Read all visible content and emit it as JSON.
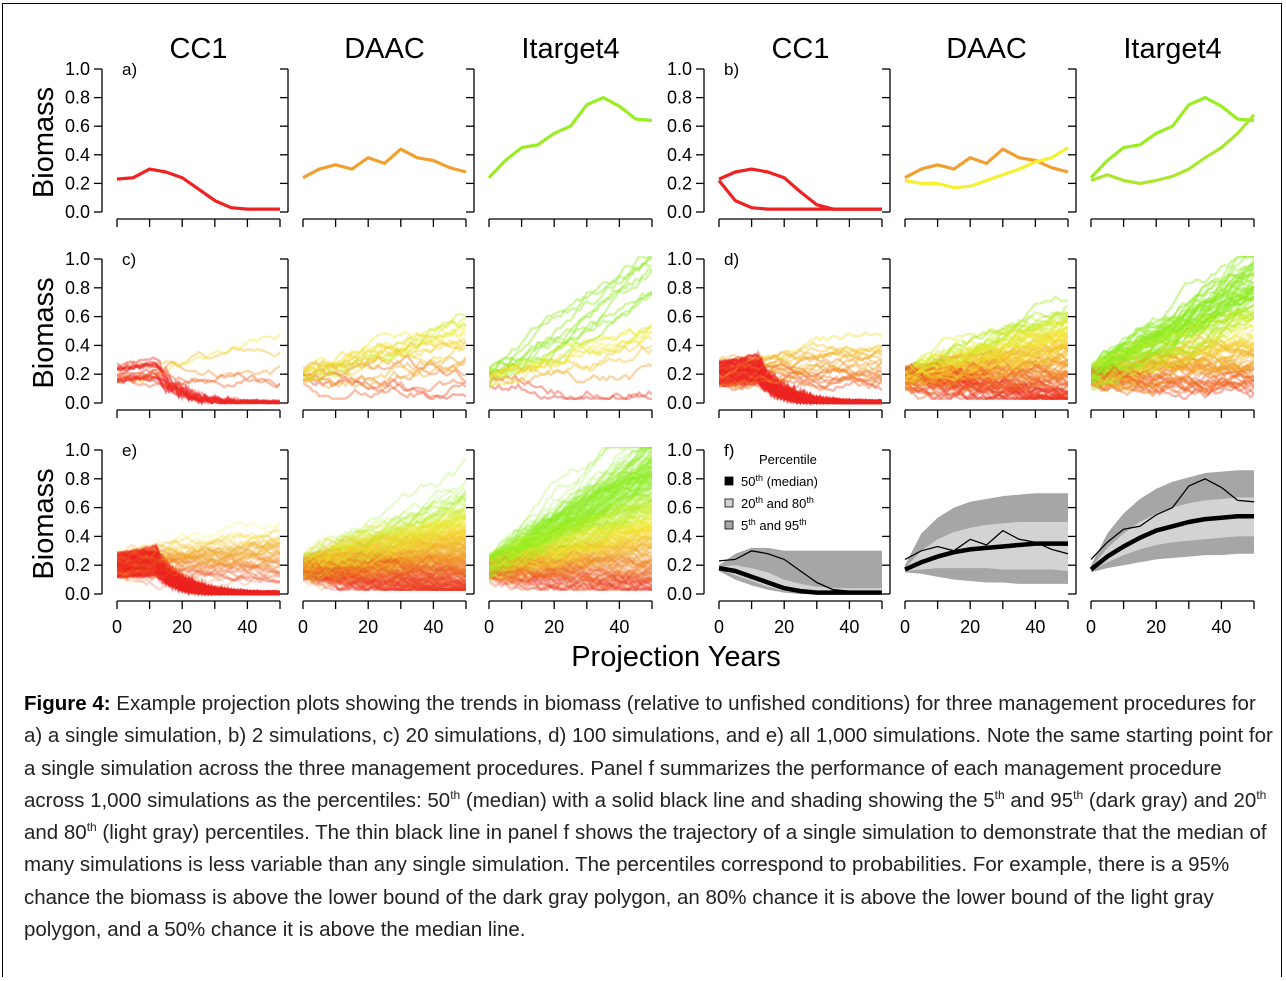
{
  "figure": {
    "column_titles": [
      "CC1",
      "DAAC",
      "Itarget4",
      "CC1",
      "DAAC",
      "Itarget4"
    ],
    "y_label": "Biomass",
    "x_label": "Projection Years",
    "y_ticks": [
      "0.0",
      "0.2",
      "0.4",
      "0.6",
      "0.8",
      "1.0"
    ],
    "x_ticks": [
      "0",
      "20",
      "40"
    ],
    "panel_letters": [
      "a)",
      "b)",
      "c)",
      "d)",
      "e)",
      "f)"
    ],
    "legend": {
      "title": "Percentile",
      "items": [
        {
          "pre": "50",
          "sup": "th",
          "post": " (median)",
          "color": "#000000"
        },
        {
          "pre": "20",
          "sup": "th",
          "mid": " and 80",
          "sup2": "th",
          "color": "#d3d3d3"
        },
        {
          "pre": "5",
          "sup": "th",
          "mid": " and 95",
          "sup2": "th",
          "color": "#a6a6a6"
        }
      ]
    },
    "colors": {
      "red": "#ee2222",
      "orange": "#f0a030",
      "green": "#99ee22",
      "yellow": "#f5f030",
      "dark_band": "#a6a6a6",
      "light_band": "#d3d3d3"
    }
  },
  "chart_data": [
    {
      "panel": "a",
      "type": "line",
      "columns": [
        "CC1",
        "DAAC",
        "Itarget4"
      ],
      "simulations": 1,
      "series": [
        {
          "mp": "CC1",
          "x": [
            0,
            5,
            10,
            15,
            20,
            25,
            30,
            35,
            40,
            45,
            50
          ],
          "y": [
            0.23,
            0.24,
            0.3,
            0.28,
            0.24,
            0.16,
            0.08,
            0.03,
            0.02,
            0.02,
            0.02
          ]
        },
        {
          "mp": "DAAC",
          "x": [
            0,
            5,
            10,
            15,
            20,
            25,
            30,
            35,
            40,
            45,
            50
          ],
          "y": [
            0.24,
            0.3,
            0.33,
            0.3,
            0.38,
            0.34,
            0.44,
            0.38,
            0.36,
            0.31,
            0.28
          ]
        },
        {
          "mp": "Itarget4",
          "x": [
            0,
            5,
            10,
            15,
            20,
            25,
            30,
            35,
            40,
            45,
            50
          ],
          "y": [
            0.24,
            0.36,
            0.45,
            0.47,
            0.55,
            0.6,
            0.75,
            0.8,
            0.74,
            0.65,
            0.64
          ]
        }
      ]
    },
    {
      "panel": "b",
      "type": "line",
      "columns": [
        "CC1",
        "DAAC",
        "Itarget4"
      ],
      "simulations": 2,
      "series": [
        {
          "mp": "CC1",
          "x": [
            0,
            5,
            10,
            15,
            20,
            25,
            30,
            35,
            40,
            45,
            50
          ],
          "y": [
            0.23,
            0.28,
            0.3,
            0.28,
            0.24,
            0.14,
            0.05,
            0.02,
            0.02,
            0.02,
            0.02
          ]
        },
        {
          "mp": "CC1",
          "x": [
            0,
            5,
            10,
            15,
            20,
            25,
            30,
            35,
            40,
            45,
            50
          ],
          "y": [
            0.22,
            0.08,
            0.03,
            0.02,
            0.02,
            0.02,
            0.02,
            0.02,
            0.02,
            0.02,
            0.02
          ]
        },
        {
          "mp": "DAAC",
          "x": [
            0,
            5,
            10,
            15,
            20,
            25,
            30,
            35,
            40,
            45,
            50
          ],
          "y": [
            0.24,
            0.3,
            0.33,
            0.3,
            0.38,
            0.34,
            0.44,
            0.38,
            0.36,
            0.31,
            0.28
          ]
        },
        {
          "mp": "DAAC",
          "x": [
            0,
            5,
            10,
            15,
            20,
            25,
            30,
            35,
            40,
            45,
            50
          ],
          "y": [
            0.22,
            0.2,
            0.2,
            0.17,
            0.18,
            0.22,
            0.26,
            0.3,
            0.35,
            0.38,
            0.45
          ]
        },
        {
          "mp": "Itarget4",
          "x": [
            0,
            5,
            10,
            15,
            20,
            25,
            30,
            35,
            40,
            45,
            50
          ],
          "y": [
            0.24,
            0.36,
            0.45,
            0.47,
            0.55,
            0.6,
            0.75,
            0.8,
            0.74,
            0.65,
            0.64
          ]
        },
        {
          "mp": "Itarget4",
          "x": [
            0,
            5,
            10,
            15,
            20,
            25,
            30,
            35,
            40,
            45,
            50
          ],
          "y": [
            0.22,
            0.26,
            0.22,
            0.2,
            0.22,
            0.25,
            0.3,
            0.38,
            0.45,
            0.55,
            0.68
          ]
        }
      ]
    },
    {
      "panel": "c",
      "type": "line",
      "columns": [
        "CC1",
        "DAAC",
        "Itarget4"
      ],
      "simulations": 20
    },
    {
      "panel": "d",
      "type": "line",
      "columns": [
        "CC1",
        "DAAC",
        "Itarget4"
      ],
      "simulations": 100
    },
    {
      "panel": "e",
      "type": "line",
      "columns": [
        "CC1",
        "DAAC",
        "Itarget4"
      ],
      "simulations": 1000
    },
    {
      "panel": "f",
      "type": "area",
      "columns": [
        "CC1",
        "DAAC",
        "Itarget4"
      ],
      "x": [
        0,
        5,
        10,
        15,
        20,
        25,
        30,
        35,
        40,
        45,
        50
      ],
      "percentiles": [
        {
          "mp": "CC1",
          "p5": [
            0.16,
            0.1,
            0.06,
            0.03,
            0.01,
            0.0,
            0.0,
            0.0,
            0.0,
            0.0,
            0.0
          ],
          "p20": [
            0.17,
            0.13,
            0.09,
            0.05,
            0.02,
            0.01,
            0.0,
            0.0,
            0.0,
            0.0,
            0.0
          ],
          "p50": [
            0.18,
            0.16,
            0.12,
            0.08,
            0.04,
            0.02,
            0.01,
            0.01,
            0.01,
            0.01,
            0.01
          ],
          "p80": [
            0.19,
            0.2,
            0.18,
            0.15,
            0.1,
            0.07,
            0.05,
            0.04,
            0.04,
            0.04,
            0.04
          ],
          "p95": [
            0.2,
            0.28,
            0.32,
            0.32,
            0.3,
            0.3,
            0.3,
            0.3,
            0.3,
            0.3,
            0.3
          ],
          "single": [
            0.23,
            0.24,
            0.3,
            0.28,
            0.24,
            0.16,
            0.08,
            0.03,
            0.02,
            0.02,
            0.02
          ]
        },
        {
          "mp": "DAAC",
          "p5": [
            0.15,
            0.14,
            0.12,
            0.1,
            0.09,
            0.08,
            0.08,
            0.07,
            0.07,
            0.07,
            0.07
          ],
          "p20": [
            0.16,
            0.17,
            0.18,
            0.18,
            0.18,
            0.18,
            0.17,
            0.17,
            0.17,
            0.17,
            0.16
          ],
          "p50": [
            0.17,
            0.22,
            0.26,
            0.29,
            0.31,
            0.32,
            0.33,
            0.34,
            0.35,
            0.35,
            0.35
          ],
          "p80": [
            0.18,
            0.3,
            0.38,
            0.43,
            0.46,
            0.48,
            0.49,
            0.5,
            0.5,
            0.5,
            0.5
          ],
          "p95": [
            0.2,
            0.42,
            0.53,
            0.6,
            0.64,
            0.66,
            0.68,
            0.69,
            0.7,
            0.7,
            0.7
          ],
          "single": [
            0.24,
            0.3,
            0.33,
            0.3,
            0.38,
            0.34,
            0.44,
            0.38,
            0.36,
            0.31,
            0.28
          ]
        },
        {
          "mp": "Itarget4",
          "p5": [
            0.15,
            0.18,
            0.2,
            0.22,
            0.24,
            0.25,
            0.26,
            0.27,
            0.27,
            0.28,
            0.28
          ],
          "p20": [
            0.16,
            0.22,
            0.27,
            0.31,
            0.34,
            0.36,
            0.37,
            0.38,
            0.39,
            0.4,
            0.4
          ],
          "p50": [
            0.17,
            0.26,
            0.33,
            0.39,
            0.44,
            0.47,
            0.5,
            0.52,
            0.53,
            0.54,
            0.54
          ],
          "p80": [
            0.18,
            0.32,
            0.42,
            0.5,
            0.56,
            0.6,
            0.63,
            0.65,
            0.66,
            0.67,
            0.67
          ],
          "p95": [
            0.2,
            0.42,
            0.56,
            0.66,
            0.73,
            0.78,
            0.81,
            0.84,
            0.85,
            0.86,
            0.86
          ],
          "single": [
            0.24,
            0.36,
            0.45,
            0.47,
            0.55,
            0.6,
            0.75,
            0.8,
            0.74,
            0.65,
            0.64
          ]
        }
      ]
    }
  ],
  "caption": {
    "label": "Figure 4:",
    "p1": "  Example projection plots showing the trends in biomass (relative to unfished conditions) for three management procedures for a) a single simulation, b) 2 simulations, c) 20 simulations, d) 100 simulations, and e) all 1,000 simulations.  Note the same starting point for a single simulation across the three management procedures. Panel f summarizes the performance of each management procedure across 1,000 simulations as the percentiles: ",
    "n50": "50",
    "t1": " (median) with a solid black line and shading showing the ",
    "n5": "5",
    "t2": " and ",
    "n95": "95",
    "t3": " (dark gray) and ",
    "n20": "20",
    "t4": " and ",
    "n80": "80",
    "t5": " (light gray) percentiles. The thin black line in panel f shows the trajectory of a single simulation to demonstrate that the median of many simulations is less variable than any single simulation.  The percentiles correspond to probabilities.  For example, there is a 95% chance the biomass is above the lower bound of the dark gray polygon, an 80% chance it is above the lower bound of the light gray polygon, and a 50% chance it is above the median line.",
    "th": "th"
  }
}
